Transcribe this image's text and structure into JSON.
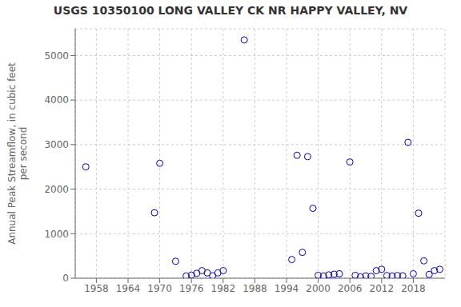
{
  "chart_data": {
    "type": "scatter",
    "title": "USGS 10350100 LONG VALLEY CK NR HAPPY VALLEY, NV",
    "ylabel": "Annual Peak Streamflow, in cubic feet\nper second",
    "x": [
      1956,
      1969,
      1970,
      1973,
      1975,
      1976,
      1977,
      1978,
      1979,
      1980,
      1981,
      1982,
      1986,
      1995,
      1996,
      1997,
      1998,
      1999,
      2000,
      2001,
      2002,
      2003,
      2004,
      2006,
      2007,
      2008,
      2009,
      2010,
      2011,
      2012,
      2013,
      2014,
      2015,
      2016,
      2017,
      2018,
      2019,
      2020,
      2021,
      2022,
      2023
    ],
    "values": [
      2500,
      1470,
      2580,
      380,
      50,
      70,
      110,
      170,
      120,
      55,
      120,
      170,
      5350,
      420,
      2760,
      580,
      2730,
      1570,
      65,
      50,
      75,
      90,
      100,
      2610,
      65,
      30,
      50,
      40,
      170,
      200,
      60,
      50,
      60,
      55,
      3050,
      100,
      1460,
      390,
      85,
      170,
      200
    ],
    "color": "#0000cc",
    "marker": "circle",
    "xlim": [
      1954,
      2024
    ],
    "ylim": [
      0,
      5600
    ],
    "xticks": [
      1958,
      1964,
      1970,
      1976,
      1982,
      1988,
      1994,
      2000,
      2006,
      2012,
      2018
    ],
    "yticks": [
      0,
      1000,
      2000,
      3000,
      4000,
      5000
    ],
    "grid": true
  }
}
